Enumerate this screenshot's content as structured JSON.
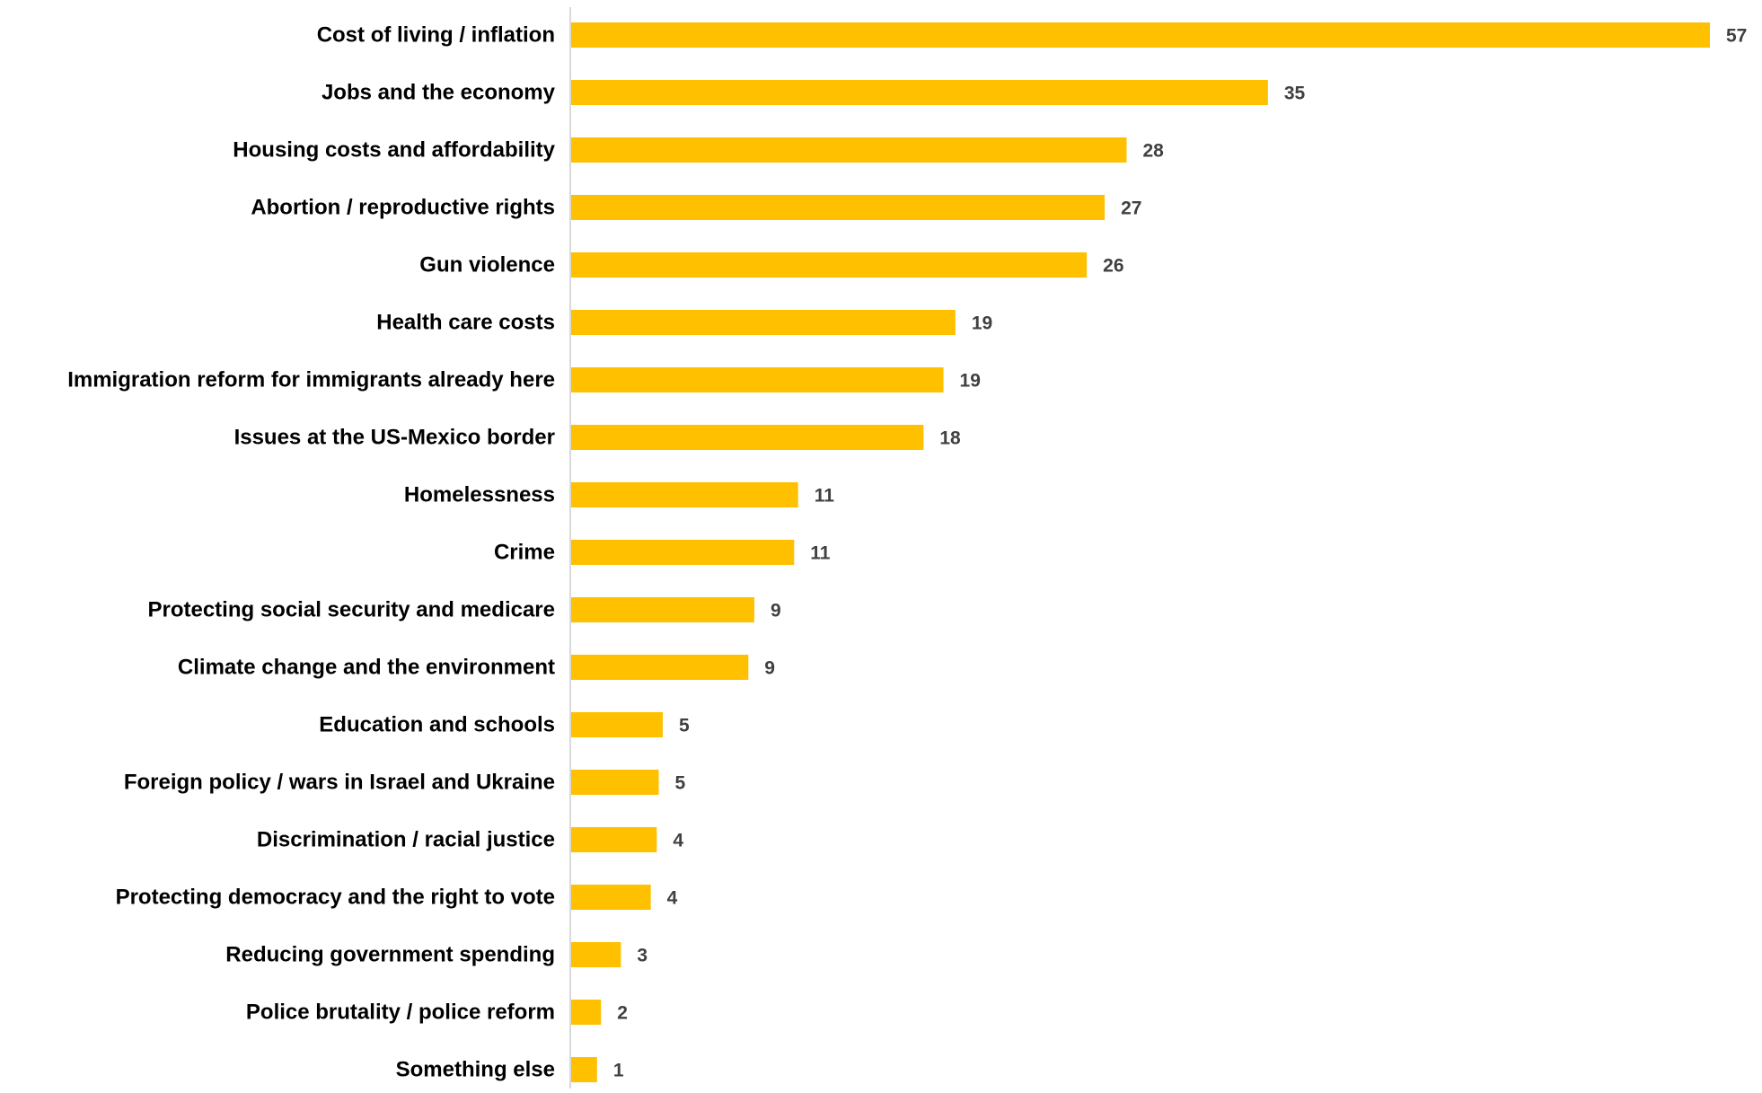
{
  "chart_data": {
    "type": "bar",
    "orientation": "horizontal",
    "categories": [
      "Cost of living / inflation",
      "Jobs and the economy",
      "Housing costs and affordability",
      "Abortion / reproductive rights",
      "Gun violence",
      "Health care costs",
      "Immigration reform for immigrants already here",
      "Issues at the US-Mexico border",
      "Homelessness",
      "Crime",
      "Protecting social security and medicare",
      "Climate change and the environment",
      "Education and schools",
      "Foreign policy / wars in Israel and Ukraine",
      "Discrimination / racial justice",
      "Protecting democracy and the right to vote",
      "Reducing government spending",
      "Police brutality / police reform",
      "Something else"
    ],
    "values": [
      57,
      35,
      28,
      27,
      26,
      19,
      19,
      18,
      11,
      11,
      9,
      9,
      5,
      5,
      4,
      4,
      3,
      2,
      1
    ],
    "bar_values": [
      57.2,
      35.0,
      27.9,
      26.8,
      25.9,
      19.3,
      18.7,
      17.7,
      11.4,
      11.2,
      9.2,
      8.9,
      4.6,
      4.4,
      4.3,
      4.0,
      2.5,
      1.5,
      1.3
    ],
    "data_labels": [
      "57",
      "35",
      "28",
      "27",
      "26",
      "19",
      "19",
      "18",
      "11",
      "11",
      "9",
      "9",
      "5",
      "5",
      "4",
      "4",
      "3",
      "2",
      "1"
    ],
    "xlim": [
      0,
      57.2
    ],
    "grid": false,
    "legend": "none",
    "colors": {
      "bar": "#FFC000",
      "axis": "#d9d9d9",
      "category_text": "#000000",
      "value_text": "#404040"
    }
  }
}
